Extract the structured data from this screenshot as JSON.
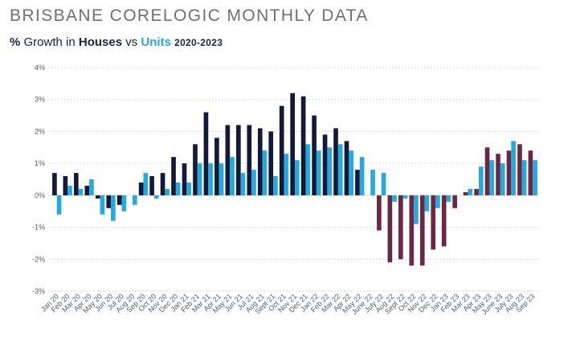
{
  "header": {
    "title": "BRISBANE CORELOGIC MONTHLY DATA",
    "subtitle_prefix": "%",
    "subtitle_growth": "Growth in",
    "subtitle_houses": "Houses",
    "subtitle_vs": "vs",
    "subtitle_units": "Units",
    "subtitle_years": "2020-2023"
  },
  "colors": {
    "houses_pre": "#14193a",
    "houses_post": "#6b2845",
    "units": "#26a9dc",
    "title": "#6f7076",
    "subtitle": "#1c2340",
    "grid": "#d9d9d9",
    "axis_text": "#555b66"
  },
  "chart_data": {
    "type": "bar",
    "title": "BRISBANE CORELOGIC MONTHLY DATA",
    "subtitle": "% Growth in Houses vs Units 2020-2023",
    "xlabel": "",
    "ylabel": "",
    "ylim": [
      -3,
      4
    ],
    "yticks": [
      "4%",
      "3%",
      "2%",
      "1%",
      "0%",
      "-1%",
      "-2%",
      "-3%"
    ],
    "grid": true,
    "legend": "none",
    "categories": [
      "Jan 20",
      "Feb 20",
      "Mar 20",
      "Apr 20",
      "May 20",
      "Jun 20",
      "Jul 20",
      "Aug 20",
      "Sep 20",
      "Oct 20",
      "Nov 20",
      "Dec 20",
      "Jan 21",
      "Feb 21",
      "Mar 21",
      "Apr 21",
      "May 21",
      "Jun 21",
      "Jul 21",
      "Aug 21",
      "Sep 21",
      "Oct 21",
      "Nov 21",
      "Dec 21",
      "Jan 22",
      "Feb 22",
      "Mar 22",
      "Apr 22",
      "May 22",
      "June 22",
      "July 22",
      "Aug 22",
      "Sept 22",
      "Oct 22",
      "Nov 22",
      "Dec 22",
      "Jan 23",
      "Feb 23",
      "Mar 23",
      "Apr 23",
      "May 23",
      "June 23",
      "July 23",
      "Aug 23",
      "Sep 23"
    ],
    "x_tick_labels": [
      "Jan 20",
      "Feb 20",
      "Mar 20",
      "Apr 20",
      "May 20",
      "Jun 20",
      "Jul 20",
      "Aug 20",
      "Sep 20",
      "Oct 20",
      "Nov 20",
      "Dec 20",
      "Jan 21",
      "Feb 21",
      "Mar 21",
      "Apr 21",
      "May 21",
      "Jun 21",
      "Jul 21",
      "Aug 21",
      "Sept 21",
      "Oct 21",
      "Nov 21",
      "Dec 21",
      "Jan 22",
      "Feb 22",
      "Mar 22",
      "Apr 22",
      "May 22",
      "June 22",
      "July 22",
      "Aug 22",
      "Sept 22",
      "Oct 22",
      "Nov 22",
      "Dec 22",
      "Jan 23",
      "Feb 23",
      "Mar 23",
      "Apr 23",
      "May 23",
      "June 23",
      "July 23",
      "Aug 23",
      "Sep 23"
    ],
    "series": [
      {
        "name": "Houses",
        "values": [
          0.7,
          0.6,
          0.7,
          0.3,
          -0.1,
          -0.4,
          -0.3,
          0.0,
          0.4,
          0.6,
          0.7,
          1.2,
          1.0,
          1.6,
          2.6,
          1.8,
          2.2,
          2.2,
          2.2,
          2.1,
          2.0,
          2.8,
          3.2,
          3.1,
          2.5,
          1.9,
          2.1,
          1.7,
          0.8,
          0.0,
          -1.1,
          -2.1,
          -2.0,
          -2.2,
          -2.2,
          -1.7,
          -1.6,
          -0.4,
          0.1,
          0.2,
          1.5,
          1.3,
          1.4,
          1.6,
          1.4
        ]
      },
      {
        "name": "Units",
        "values": [
          -0.6,
          0.3,
          0.2,
          0.5,
          -0.6,
          -0.8,
          -0.5,
          -0.3,
          0.7,
          -0.1,
          0.2,
          0.4,
          0.4,
          1.0,
          1.0,
          1.0,
          1.2,
          0.7,
          0.8,
          1.4,
          0.6,
          1.3,
          1.1,
          1.6,
          1.4,
          1.5,
          1.6,
          1.4,
          1.2,
          0.8,
          0.7,
          -0.2,
          -0.1,
          -0.9,
          -0.5,
          -0.4,
          -0.2,
          0.0,
          0.2,
          0.9,
          1.1,
          1.0,
          1.7,
          1.1,
          1.1
        ]
      }
    ]
  }
}
